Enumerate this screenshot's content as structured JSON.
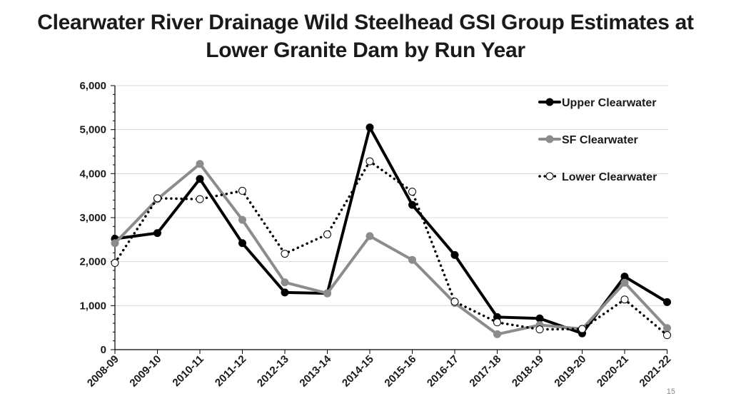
{
  "page_number": "15",
  "chart_data": {
    "type": "line",
    "title_lines": [
      "Clearwater River Drainage Wild Steelhead GSI Group Estimates at",
      "Lower Granite Dam by Run Year"
    ],
    "xlabel": "",
    "ylabel": "",
    "ylim": [
      0,
      6000
    ],
    "yticks": [
      0,
      1000,
      2000,
      3000,
      4000,
      5000,
      6000
    ],
    "ytick_labels": [
      "0",
      "1,000",
      "2,000",
      "3,000",
      "4,000",
      "5,000",
      "6,000"
    ],
    "grid": "horizontal",
    "legend_position": "top-right",
    "categories": [
      "2008-09",
      "2009-10",
      "2010-11",
      "2011-12",
      "2012-13",
      "2013-14",
      "2014-15",
      "2015-16",
      "2016-17",
      "2017-18",
      "2018-19",
      "2019-20",
      "2020-21",
      "2021-22"
    ],
    "series": [
      {
        "name": "Upper Clearwater",
        "style": "solid",
        "color": "#000000",
        "marker": "filled",
        "values": [
          2520,
          2650,
          3880,
          2420,
          1300,
          1280,
          5050,
          3290,
          2150,
          740,
          710,
          370,
          1660,
          1080
        ]
      },
      {
        "name": "SF Clearwater",
        "style": "solid",
        "color": "#8c8c8c",
        "marker": "filled",
        "values": [
          2420,
          3420,
          4220,
          2950,
          1530,
          1280,
          2580,
          2040,
          1060,
          350,
          560,
          470,
          1520,
          490
        ]
      },
      {
        "name": "Lower Clearwater",
        "style": "dotted",
        "color": "#000000",
        "marker": "open",
        "values": [
          1970,
          3440,
          3420,
          3610,
          2180,
          2620,
          4280,
          3590,
          1090,
          620,
          460,
          470,
          1140,
          330
        ]
      }
    ]
  }
}
